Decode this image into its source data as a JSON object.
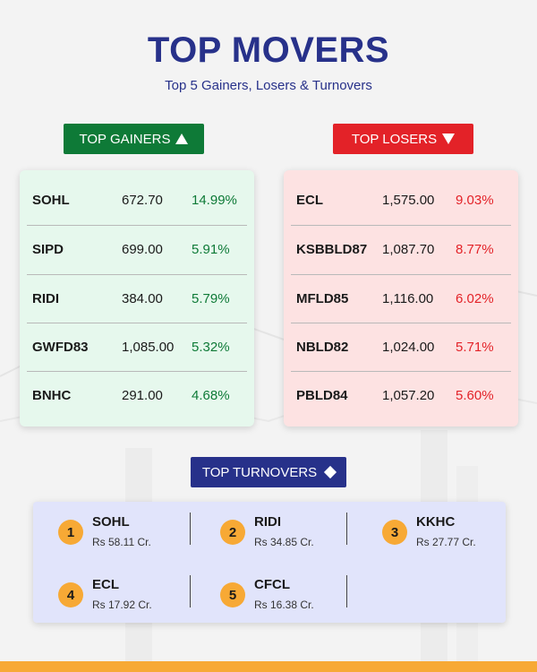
{
  "header": {
    "title": "TOP MOVERS",
    "subtitle": "Top 5 Gainers, Losers & Turnovers"
  },
  "gainers": {
    "label": "TOP GAINERS",
    "icon": "triangle-up-icon",
    "color": "#0e7a37",
    "rows": [
      {
        "symbol": "SOHL",
        "price": "672.70",
        "change": "14.99%"
      },
      {
        "symbol": "SIPD",
        "price": "699.00",
        "change": "5.91%"
      },
      {
        "symbol": "RIDI",
        "price": "384.00",
        "change": "5.79%"
      },
      {
        "symbol": "GWFD83",
        "price": "1,085.00",
        "change": "5.32%"
      },
      {
        "symbol": "BNHC",
        "price": "291.00",
        "change": "4.68%"
      }
    ]
  },
  "losers": {
    "label": "TOP LOSERS",
    "icon": "triangle-down-icon",
    "color": "#e32228",
    "rows": [
      {
        "symbol": "ECL",
        "price": "1,575.00",
        "change": "9.03%"
      },
      {
        "symbol": "KSBBLD87",
        "price": "1,087.70",
        "change": "8.77%"
      },
      {
        "symbol": "MFLD85",
        "price": "1,116.00",
        "change": "6.02%"
      },
      {
        "symbol": "NBLD82",
        "price": "1,024.00",
        "change": "5.71%"
      },
      {
        "symbol": "PBLD84",
        "price": "1,057.20",
        "change": "5.60%"
      }
    ]
  },
  "turnovers": {
    "label": "TOP TURNOVERS",
    "icon": "diamond-icon",
    "color": "#27318a",
    "badge_color": "#f7a935",
    "items": [
      {
        "rank": "1",
        "symbol": "SOHL",
        "value": "Rs 58.11 Cr."
      },
      {
        "rank": "2",
        "symbol": "RIDI",
        "value": "Rs 34.85 Cr."
      },
      {
        "rank": "3",
        "symbol": "KKHC",
        "value": "Rs 27.77 Cr."
      },
      {
        "rank": "4",
        "symbol": "ECL",
        "value": "Rs 17.92 Cr."
      },
      {
        "rank": "5",
        "symbol": "CFCL",
        "value": "Rs 16.38 Cr."
      }
    ]
  }
}
